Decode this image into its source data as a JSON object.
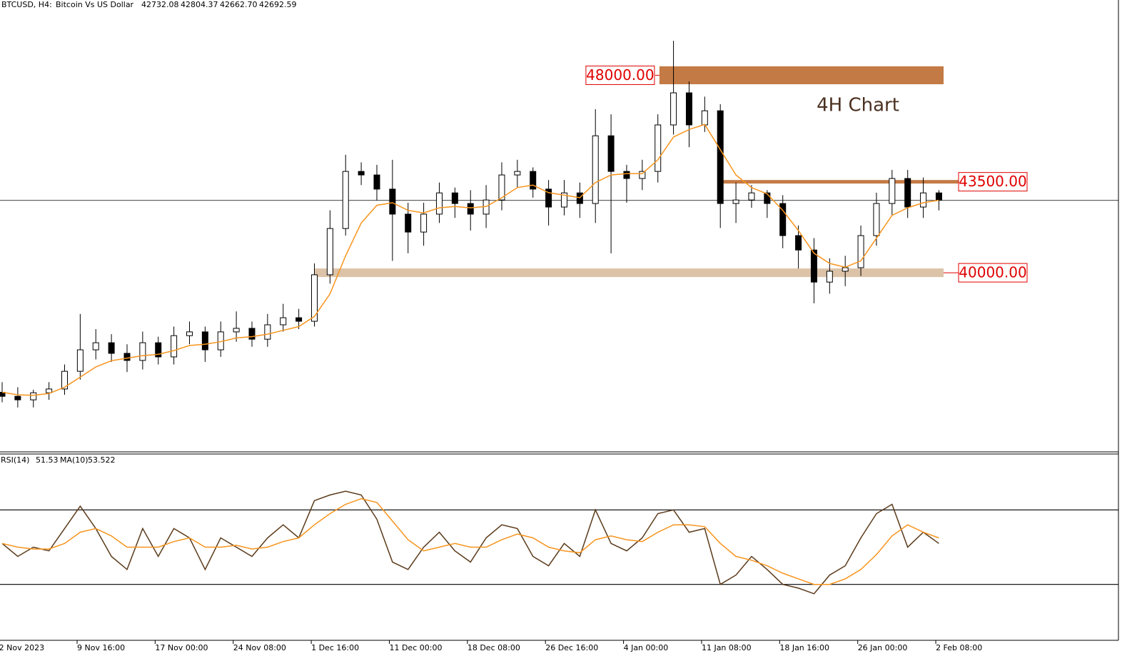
{
  "chart_data": {
    "type": "candlestick",
    "symbol": "BTCUSD, H4:",
    "description": "Bitcoin Vs US Dollar",
    "quote": [
      {
        "value": 42732.08,
        "label": "42732.08"
      },
      {
        "value": 42804.37,
        "label": "42804.37"
      },
      {
        "value": 42662.7,
        "label": "42662.70"
      },
      {
        "value": 42692.59,
        "label": "42692.59"
      }
    ],
    "annotation": "4H Chart",
    "ylim": [
      32770,
      50200
    ],
    "xlim": [
      0,
      71.5
    ],
    "xticks": [
      {
        "value": -0.2,
        "label": "2 Nov 2023"
      },
      {
        "value": 4.8,
        "label": "9 Nov 16:00"
      },
      {
        "value": 9.8,
        "label": "17 Nov 00:00"
      },
      {
        "value": 14.8,
        "label": "24 Nov 08:00"
      },
      {
        "value": 19.8,
        "label": "1 Dec 16:00"
      },
      {
        "value": 24.8,
        "label": "11 Dec 00:00"
      },
      {
        "value": 29.8,
        "label": "18 Dec 08:00"
      },
      {
        "value": 34.8,
        "label": "26 Dec 16:00"
      },
      {
        "value": 39.8,
        "label": "4 Jan 00:00"
      },
      {
        "value": 44.8,
        "label": "11 Jan 08:00"
      },
      {
        "value": 49.8,
        "label": "18 Jan 16:00"
      },
      {
        "value": 54.8,
        "label": "26 Jan 00:00"
      },
      {
        "value": 59.8,
        "label": "2 Feb 08:00"
      }
    ],
    "open": [
      35100,
      34940,
      34800,
      35080,
      35230,
      35930,
      36780,
      37060,
      36640,
      36360,
      37060,
      36500,
      37340,
      37490,
      36780,
      37490,
      37630,
      37200,
      37770,
      38050,
      37910,
      39750,
      41580,
      43840,
      43700,
      43140,
      42150,
      41440,
      42150,
      42990,
      42570,
      42150,
      42710,
      43700,
      43840,
      43140,
      42430,
      42990,
      42570,
      45250,
      43840,
      43560,
      43840,
      45680,
      46950,
      45680,
      46240,
      42570,
      42710,
      42990,
      42570,
      41300,
      40730,
      39460,
      39890,
      40030,
      41300,
      42570,
      43560,
      42430,
      42990
    ],
    "close": [
      34940,
      34800,
      35080,
      35230,
      35930,
      36780,
      37060,
      36640,
      36360,
      37060,
      36500,
      37340,
      37490,
      36780,
      37490,
      37630,
      37200,
      37770,
      38050,
      37910,
      39750,
      41580,
      43840,
      43700,
      43140,
      42150,
      41440,
      42150,
      42990,
      42570,
      42150,
      42710,
      43700,
      43840,
      43140,
      42430,
      42990,
      42570,
      45250,
      43840,
      43560,
      43840,
      45680,
      46950,
      45680,
      46240,
      42570,
      42710,
      42990,
      42570,
      41300,
      40730,
      39460,
      39890,
      40030,
      41300,
      42570,
      43560,
      42430,
      42990,
      42700
    ],
    "high": [
      35500,
      35300,
      35200,
      35500,
      36200,
      38200,
      37600,
      37400,
      37000,
      37500,
      37300,
      37700,
      37900,
      37700,
      37900,
      38300,
      37900,
      38200,
      38600,
      38400,
      40200,
      42300,
      44500,
      44200,
      44100,
      44300,
      42600,
      42600,
      43400,
      43200,
      43100,
      43300,
      44200,
      44300,
      44000,
      43500,
      43500,
      43400,
      46300,
      46100,
      44100,
      44300,
      46100,
      49010,
      47400,
      46800,
      46500,
      43400,
      43300,
      43100,
      42900,
      41700,
      41200,
      40400,
      40500,
      41700,
      43000,
      43900,
      43900,
      43600,
      43100
    ],
    "low": [
      34700,
      34500,
      34500,
      34800,
      35000,
      35600,
      36400,
      36300,
      35900,
      36000,
      36200,
      36200,
      37000,
      36300,
      36500,
      37100,
      36900,
      36900,
      37500,
      37600,
      37700,
      39400,
      41300,
      43300,
      42700,
      40300,
      40600,
      40900,
      41800,
      42000,
      41500,
      41600,
      42300,
      43200,
      42800,
      41700,
      42100,
      42000,
      41800,
      40600,
      42600,
      43100,
      43400,
      45300,
      44800,
      45400,
      41600,
      41800,
      42400,
      42000,
      40800,
      40000,
      38620,
      39000,
      39300,
      39700,
      40900,
      42100,
      42000,
      42000,
      42300
    ],
    "ma": [
      35100,
      35000,
      34980,
      35050,
      35300,
      35700,
      36100,
      36350,
      36450,
      36550,
      36600,
      36750,
      36950,
      37000,
      37100,
      37250,
      37300,
      37400,
      37550,
      37700,
      38100,
      39000,
      40500,
      41800,
      42500,
      42600,
      42300,
      42200,
      42400,
      42450,
      42400,
      42450,
      42800,
      43200,
      43300,
      43000,
      42900,
      42800,
      43400,
      43700,
      43750,
      43750,
      44300,
      45200,
      45500,
      45700,
      44700,
      43700,
      43200,
      42950,
      42300,
      41500,
      40600,
      40200,
      40050,
      40300,
      41200,
      42100,
      42400,
      42600,
      42700
    ],
    "ma_color": "#f7941d",
    "levels": [
      {
        "price": {
          "value": 48000,
          "label": "48000.00"
        },
        "low": 47290,
        "start": 42.1,
        "end": 60.3,
        "color": "#c47a45"
      },
      {
        "price": {
          "value": 43500,
          "label": "43500.00"
        },
        "low": 43360,
        "start": 46,
        "end": 61.3,
        "color": "#c47a45"
      },
      {
        "price": {
          "value": 40000,
          "label": "40000.00"
        },
        "low": 39660,
        "start": 20,
        "end": 60.3,
        "color": "#dcc3a8"
      }
    ],
    "rsi": {
      "name": "RSI(14)",
      "last": 51.53,
      "ma_name": "MA(10)",
      "ma_last": {
        "value": 53.522,
        "label": "53.522"
      },
      "ylim": [
        0,
        100
      ],
      "levels": [
        70,
        30
      ],
      "color": "#5a3a1a",
      "ma_color": "#f7941d",
      "values": [
        52,
        45,
        50,
        48,
        60,
        72,
        60,
        45,
        38,
        60,
        45,
        60,
        55,
        38,
        55,
        50,
        45,
        55,
        62,
        55,
        75,
        78,
        80,
        78,
        65,
        42,
        38,
        50,
        58,
        48,
        42,
        55,
        62,
        60,
        45,
        40,
        52,
        45,
        70,
        52,
        48,
        55,
        68,
        70,
        58,
        60,
        30,
        35,
        45,
        38,
        30,
        28,
        25,
        35,
        40,
        55,
        68,
        73,
        50,
        58,
        52
      ],
      "ma": [
        52,
        50,
        49,
        49,
        52,
        58,
        60,
        56,
        50,
        50,
        50,
        53,
        55,
        50,
        50,
        51,
        49,
        50,
        53,
        55,
        62,
        68,
        73,
        76,
        74,
        64,
        54,
        48,
        50,
        52,
        50,
        50,
        54,
        57,
        55,
        50,
        48,
        47,
        54,
        56,
        54,
        53,
        58,
        62,
        62,
        61,
        52,
        45,
        43,
        40,
        36,
        33,
        30,
        30,
        33,
        38,
        46,
        56,
        62,
        58,
        55
      ]
    }
  }
}
